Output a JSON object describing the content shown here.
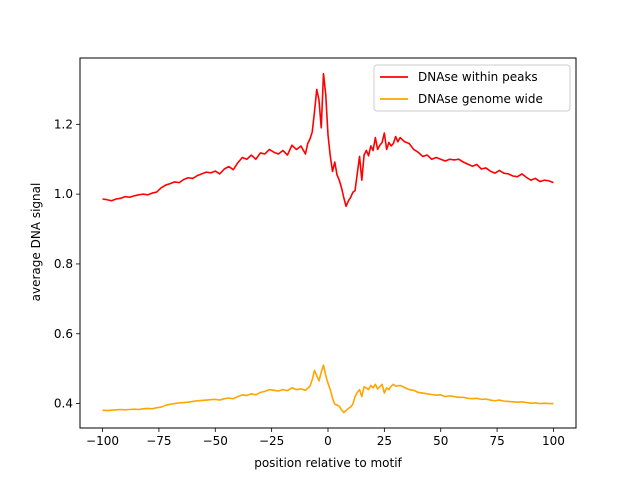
{
  "chart_data": {
    "type": "line",
    "xlabel": "position relative to motif",
    "ylabel": "average DNA signal",
    "xlim": [
      -110,
      110
    ],
    "ylim": [
      0.33,
      1.39
    ],
    "xticks": [
      -100,
      -75,
      -50,
      -25,
      0,
      25,
      50,
      75,
      100
    ],
    "xtick_labels": [
      "−100",
      "−75",
      "−50",
      "−25",
      "0",
      "25",
      "50",
      "75",
      "100"
    ],
    "yticks": [
      0.4,
      0.6,
      0.8,
      1.0,
      1.2
    ],
    "ytick_labels": [
      "0.4",
      "0.6",
      "0.8",
      "1.0",
      "1.2"
    ],
    "grid": false,
    "legend_position": "top-right",
    "series": [
      {
        "name": "DNAse within peaks",
        "color": "#ff0000",
        "points": [
          [
            -100,
            0.986
          ],
          [
            -98,
            0.984
          ],
          [
            -96,
            0.981
          ],
          [
            -94,
            0.986
          ],
          [
            -92,
            0.988
          ],
          [
            -90,
            0.993
          ],
          [
            -88,
            0.991
          ],
          [
            -86,
            0.995
          ],
          [
            -84,
            0.998
          ],
          [
            -82,
            1.0
          ],
          [
            -80,
            0.998
          ],
          [
            -78,
            1.003
          ],
          [
            -76,
            1.006
          ],
          [
            -74,
            1.018
          ],
          [
            -72,
            1.026
          ],
          [
            -70,
            1.03
          ],
          [
            -68,
            1.035
          ],
          [
            -66,
            1.033
          ],
          [
            -64,
            1.042
          ],
          [
            -62,
            1.047
          ],
          [
            -60,
            1.045
          ],
          [
            -58,
            1.053
          ],
          [
            -56,
            1.058
          ],
          [
            -54,
            1.063
          ],
          [
            -52,
            1.061
          ],
          [
            -50,
            1.066
          ],
          [
            -48,
            1.058
          ],
          [
            -46,
            1.072
          ],
          [
            -44,
            1.079
          ],
          [
            -42,
            1.07
          ],
          [
            -40,
            1.09
          ],
          [
            -38,
            1.105
          ],
          [
            -36,
            1.1
          ],
          [
            -34,
            1.112
          ],
          [
            -32,
            1.1
          ],
          [
            -30,
            1.118
          ],
          [
            -28,
            1.115
          ],
          [
            -26,
            1.128
          ],
          [
            -24,
            1.12
          ],
          [
            -22,
            1.115
          ],
          [
            -20,
            1.125
          ],
          [
            -18,
            1.112
          ],
          [
            -16,
            1.14
          ],
          [
            -14,
            1.128
          ],
          [
            -12,
            1.138
          ],
          [
            -10,
            1.115
          ],
          [
            -9,
            1.145
          ],
          [
            -8,
            1.158
          ],
          [
            -7,
            1.178
          ],
          [
            -6,
            1.235
          ],
          [
            -5,
            1.3
          ],
          [
            -4,
            1.27
          ],
          [
            -3,
            1.19
          ],
          [
            -2,
            1.345
          ],
          [
            -1,
            1.285
          ],
          [
            0,
            1.17
          ],
          [
            1,
            1.11
          ],
          [
            2,
            1.065
          ],
          [
            3,
            1.092
          ],
          [
            4,
            1.055
          ],
          [
            5,
            1.04
          ],
          [
            6,
            1.018
          ],
          [
            7,
            0.99
          ],
          [
            8,
            0.965
          ],
          [
            9,
            0.98
          ],
          [
            10,
            0.99
          ],
          [
            11,
            1.005
          ],
          [
            12,
            1.01
          ],
          [
            13,
            1.06
          ],
          [
            14,
            1.108
          ],
          [
            15,
            1.04
          ],
          [
            16,
            1.112
          ],
          [
            17,
            1.125
          ],
          [
            18,
            1.11
          ],
          [
            19,
            1.138
          ],
          [
            20,
            1.125
          ],
          [
            21,
            1.162
          ],
          [
            22,
            1.128
          ],
          [
            23,
            1.14
          ],
          [
            24,
            1.148
          ],
          [
            25,
            1.175
          ],
          [
            26,
            1.128
          ],
          [
            27,
            1.148
          ],
          [
            28,
            1.138
          ],
          [
            29,
            1.145
          ],
          [
            30,
            1.165
          ],
          [
            31,
            1.15
          ],
          [
            32,
            1.162
          ],
          [
            34,
            1.15
          ],
          [
            36,
            1.145
          ],
          [
            38,
            1.128
          ],
          [
            40,
            1.12
          ],
          [
            42,
            1.108
          ],
          [
            44,
            1.112
          ],
          [
            46,
            1.1
          ],
          [
            48,
            1.105
          ],
          [
            50,
            1.1
          ],
          [
            52,
            1.095
          ],
          [
            54,
            1.1
          ],
          [
            56,
            1.098
          ],
          [
            58,
            1.1
          ],
          [
            60,
            1.092
          ],
          [
            62,
            1.086
          ],
          [
            64,
            1.08
          ],
          [
            66,
            1.085
          ],
          [
            68,
            1.072
          ],
          [
            70,
            1.075
          ],
          [
            72,
            1.066
          ],
          [
            74,
            1.06
          ],
          [
            76,
            1.068
          ],
          [
            78,
            1.06
          ],
          [
            80,
            1.058
          ],
          [
            82,
            1.052
          ],
          [
            84,
            1.05
          ],
          [
            86,
            1.058
          ],
          [
            88,
            1.048
          ],
          [
            90,
            1.04
          ],
          [
            92,
            1.045
          ],
          [
            94,
            1.036
          ],
          [
            96,
            1.04
          ],
          [
            98,
            1.038
          ],
          [
            100,
            1.033
          ]
        ]
      },
      {
        "name": "DNAse genome wide",
        "color": "#ffa500",
        "points": [
          [
            -100,
            0.381
          ],
          [
            -98,
            0.38
          ],
          [
            -96,
            0.381
          ],
          [
            -94,
            0.382
          ],
          [
            -92,
            0.383
          ],
          [
            -90,
            0.382
          ],
          [
            -88,
            0.383
          ],
          [
            -86,
            0.384
          ],
          [
            -84,
            0.383
          ],
          [
            -82,
            0.385
          ],
          [
            -80,
            0.386
          ],
          [
            -78,
            0.385
          ],
          [
            -76,
            0.388
          ],
          [
            -74,
            0.39
          ],
          [
            -72,
            0.395
          ],
          [
            -70,
            0.398
          ],
          [
            -68,
            0.4
          ],
          [
            -66,
            0.402
          ],
          [
            -64,
            0.403
          ],
          [
            -62,
            0.404
          ],
          [
            -60,
            0.406
          ],
          [
            -58,
            0.408
          ],
          [
            -56,
            0.409
          ],
          [
            -54,
            0.41
          ],
          [
            -52,
            0.411
          ],
          [
            -50,
            0.412
          ],
          [
            -48,
            0.41
          ],
          [
            -46,
            0.414
          ],
          [
            -44,
            0.416
          ],
          [
            -42,
            0.414
          ],
          [
            -40,
            0.42
          ],
          [
            -38,
            0.425
          ],
          [
            -36,
            0.423
          ],
          [
            -34,
            0.428
          ],
          [
            -32,
            0.425
          ],
          [
            -30,
            0.432
          ],
          [
            -28,
            0.435
          ],
          [
            -26,
            0.44
          ],
          [
            -24,
            0.438
          ],
          [
            -22,
            0.436
          ],
          [
            -20,
            0.44
          ],
          [
            -18,
            0.437
          ],
          [
            -16,
            0.445
          ],
          [
            -14,
            0.44
          ],
          [
            -12,
            0.442
          ],
          [
            -10,
            0.438
          ],
          [
            -8,
            0.45
          ],
          [
            -7,
            0.468
          ],
          [
            -6,
            0.495
          ],
          [
            -5,
            0.48
          ],
          [
            -4,
            0.465
          ],
          [
            -3,
            0.49
          ],
          [
            -2,
            0.51
          ],
          [
            -1,
            0.48
          ],
          [
            0,
            0.458
          ],
          [
            1,
            0.44
          ],
          [
            2,
            0.415
          ],
          [
            3,
            0.398
          ],
          [
            4,
            0.396
          ],
          [
            5,
            0.392
          ],
          [
            6,
            0.382
          ],
          [
            7,
            0.374
          ],
          [
            8,
            0.38
          ],
          [
            9,
            0.386
          ],
          [
            10,
            0.39
          ],
          [
            11,
            0.398
          ],
          [
            12,
            0.42
          ],
          [
            13,
            0.432
          ],
          [
            14,
            0.44
          ],
          [
            15,
            0.42
          ],
          [
            16,
            0.448
          ],
          [
            17,
            0.445
          ],
          [
            18,
            0.44
          ],
          [
            19,
            0.452
          ],
          [
            20,
            0.445
          ],
          [
            21,
            0.455
          ],
          [
            22,
            0.442
          ],
          [
            23,
            0.448
          ],
          [
            24,
            0.455
          ],
          [
            25,
            0.43
          ],
          [
            26,
            0.445
          ],
          [
            27,
            0.44
          ],
          [
            28,
            0.45
          ],
          [
            29,
            0.455
          ],
          [
            30,
            0.45
          ],
          [
            32,
            0.452
          ],
          [
            34,
            0.446
          ],
          [
            36,
            0.44
          ],
          [
            38,
            0.438
          ],
          [
            40,
            0.432
          ],
          [
            42,
            0.43
          ],
          [
            44,
            0.428
          ],
          [
            46,
            0.426
          ],
          [
            48,
            0.424
          ],
          [
            50,
            0.425
          ],
          [
            52,
            0.42
          ],
          [
            54,
            0.422
          ],
          [
            56,
            0.42
          ],
          [
            58,
            0.418
          ],
          [
            60,
            0.418
          ],
          [
            62,
            0.415
          ],
          [
            64,
            0.414
          ],
          [
            66,
            0.415
          ],
          [
            68,
            0.412
          ],
          [
            70,
            0.413
          ],
          [
            72,
            0.41
          ],
          [
            74,
            0.408
          ],
          [
            76,
            0.41
          ],
          [
            78,
            0.407
          ],
          [
            80,
            0.406
          ],
          [
            82,
            0.405
          ],
          [
            84,
            0.404
          ],
          [
            86,
            0.405
          ],
          [
            88,
            0.403
          ],
          [
            90,
            0.401
          ],
          [
            92,
            0.402
          ],
          [
            94,
            0.4
          ],
          [
            96,
            0.401
          ],
          [
            98,
            0.4
          ],
          [
            100,
            0.4
          ]
        ]
      }
    ]
  }
}
